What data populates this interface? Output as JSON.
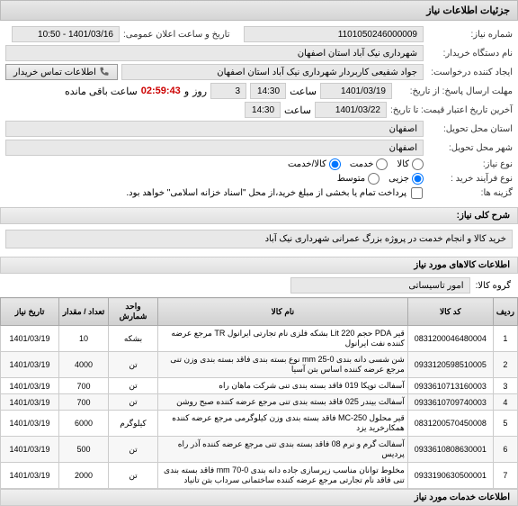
{
  "headers": {
    "details": "جزئیات اطلاعات نیاز",
    "desc_title": "شرح کلی نیاز:",
    "items_title": "اطلاعات کالاهای مورد نیاز",
    "services_title": "اطلاعات خدمات مورد نیاز"
  },
  "labels": {
    "need_no": "شماره نیاز:",
    "public_announce": "تاریخ و ساعت اعلان عمومی:",
    "buyer_org": "نام دستگاه خریدار:",
    "requester": "ایجاد کننده درخواست:",
    "contact_btn": "اطلاعات تماس خریدار",
    "reply_deadline": "مهلت ارسال پاسخ: از تاریخ:",
    "credit_expiry": "آخرین تاریخ اعتبار قیمت: تا تاریخ:",
    "saat": "ساعت",
    "va": "و",
    "rooz": "روز",
    "saat_remain": "ساعت باقی مانده",
    "delivery_province": "استان محل تحویل:",
    "delivery_city": "شهر محل تحویل:",
    "need_type": "نوع نیاز:",
    "buy_process": "نوع فرآیند خرید :",
    "partial_note": "پرداخت تمام یا بخشی از مبلغ خرید،از محل \"اسناد خزانه اسلامی\" خواهد بود.",
    "group": "گروه کالا:"
  },
  "values": {
    "need_no": "1101050246000009",
    "announce_dt": "1401/03/16 - 10:50",
    "buyer_org": "شهرداری نیک آباد استان اصفهان",
    "requester": "جواد شفیعی کاربردار شهرداری نیک آباد استان اصفهان",
    "reply_date": "1401/03/19",
    "reply_time": "14:30",
    "reply_days": "3",
    "countdown": "02:59:43",
    "credit_date": "1401/03/22",
    "credit_time": "14:30",
    "province": "اصفهان",
    "city": "اصفهان",
    "group": "امور تاسیساتی",
    "description": "خرید کالا   و    انجام خدمت  در  پروژه بزرگ عمرانی شهرداری نیک آباد"
  },
  "need_type": {
    "opt1": "کالا",
    "opt2": "خدمت",
    "opt3": "کالا/خدمت",
    "selected": "opt3"
  },
  "buy_process": {
    "opt1": "جزیی",
    "opt2": "متوسط",
    "selected": "opt1"
  },
  "partial_checked": false,
  "table": {
    "cols": {
      "num": "ردیف",
      "code": "کد کالا",
      "name": "نام کالا",
      "unit": "واحد شمارش",
      "qty": "تعداد / مقدار",
      "date": "تاریخ نیاز"
    },
    "rows": [
      {
        "num": "1",
        "code": "0831200046480004",
        "name": "قیر PDA حجم Lit 220 بشکه فلزی نام تجارتی ایرانول TR مرجع عرضه کننده نفت ایرانول",
        "unit": "بشکه",
        "qty": "10",
        "date": "1401/03/19"
      },
      {
        "num": "2",
        "code": "0933120598510005",
        "name": "شن شسی دانه بندی mm 25-0 نوع بسته بندی فاقد بسته بندی وزن تنی مرجع عرضه کننده اساس بتن آسیا",
        "unit": "تن",
        "qty": "4000",
        "date": "1401/03/19"
      },
      {
        "num": "3",
        "code": "0933610713160003",
        "name": "آسفالت توپکا 019 فاقد بسته بندی تنی شرکت ماهان راه",
        "unit": "تن",
        "qty": "700",
        "date": "1401/03/19"
      },
      {
        "num": "4",
        "code": "0933610709740003",
        "name": "آسفالت بیندر 025 فاقد بسته بندی تنی مرجع عرضه کننده صبح روشن",
        "unit": "تن",
        "qty": "700",
        "date": "1401/03/19"
      },
      {
        "num": "5",
        "code": "0831200570450008",
        "name": "قیر محلول MC-250 فاقد بسته بندی وزن کیلوگرمی مرجع عرضه کننده همکارخرید یزد",
        "unit": "کیلوگرم",
        "qty": "6000",
        "date": "1401/03/19"
      },
      {
        "num": "6",
        "code": "0933610808630001",
        "name": "آسفالت گرم و نرم 08 فاقد بسته بندی تنی مرجع عرضه کننده آذر راه پردیس",
        "unit": "تن",
        "qty": "500",
        "date": "1401/03/19"
      },
      {
        "num": "7",
        "code": "0933190630500001",
        "name": "مخلوط توانان مناسب زیرسازی جاده دانه بندی mm 70-0 فاقد بسته بندی تنی فاقد نام تجارتی مرجع عرضه کننده ساختمانی سرداب بتن تانیاد",
        "unit": "تن",
        "qty": "2000",
        "date": "1401/03/19"
      }
    ]
  }
}
